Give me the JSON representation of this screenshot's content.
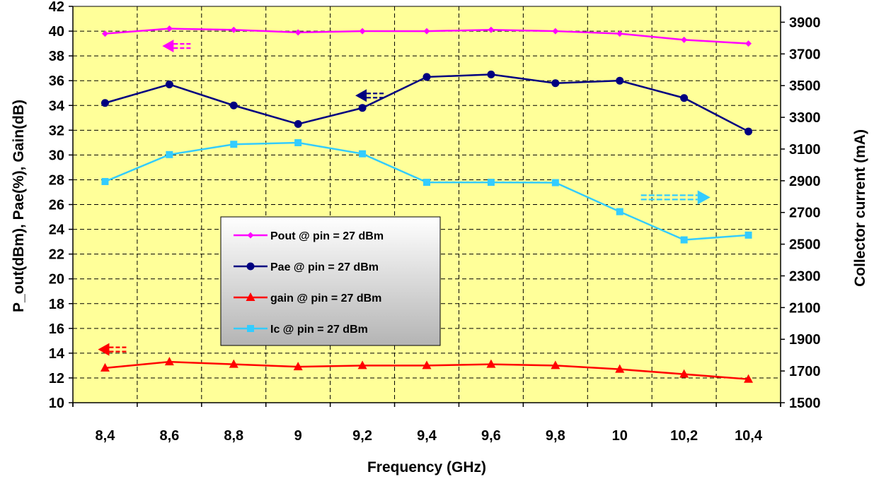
{
  "chart_data": {
    "type": "line",
    "x": [
      "8,4",
      "8,6",
      "8,8",
      "9",
      "9,2",
      "9,4",
      "9,6",
      "9,8",
      "10",
      "10,2",
      "10,4"
    ],
    "xlabel": "Frequency (GHz)",
    "ylabel_left": "P_out(dBm), Pae(%), Gain(dB)",
    "ylabel_right": "Collector current (mA)",
    "ylim_left": [
      10,
      42
    ],
    "yticks_left": [
      10,
      12,
      14,
      16,
      18,
      20,
      22,
      24,
      26,
      28,
      30,
      32,
      34,
      36,
      38,
      40,
      42
    ],
    "ylim_right": [
      1500,
      4000
    ],
    "yticks_right": [
      1500,
      1700,
      1900,
      2100,
      2300,
      2500,
      2700,
      2900,
      3100,
      3300,
      3500,
      3700,
      3900
    ],
    "grid": true,
    "legend_position": "center-left",
    "plot_background": "#FFFF99",
    "series": [
      {
        "name": "Pout @ pin = 27 dBm",
        "axis": "left",
        "marker": "diamond",
        "color": "#FF00FF",
        "values": [
          39.8,
          40.2,
          40.1,
          39.9,
          40.0,
          40.0,
          40.1,
          40.0,
          39.8,
          39.3,
          39.0
        ]
      },
      {
        "name": "Pae @ pin = 27 dBm",
        "axis": "left",
        "marker": "circle",
        "color": "#000080",
        "values": [
          34.2,
          35.7,
          34.0,
          32.5,
          33.8,
          36.3,
          36.5,
          35.8,
          36.0,
          34.6,
          31.9
        ]
      },
      {
        "name": "gain @ pin = 27 dBm",
        "axis": "left",
        "marker": "triangle",
        "color": "#FF0000",
        "values": [
          12.8,
          13.3,
          13.1,
          12.9,
          13.0,
          13.0,
          13.1,
          13.0,
          12.7,
          12.3,
          11.9
        ]
      },
      {
        "name": "Ic @ pin = 27 dBm",
        "axis": "right",
        "marker": "square",
        "color": "#33CCFF",
        "values": [
          2895,
          3065,
          3130,
          3140,
          3070,
          2890,
          2890,
          2888,
          2705,
          2527,
          2557
        ]
      }
    ],
    "annotations": [
      {
        "kind": "axis-arrow",
        "direction": "left",
        "color": "#FF00FF",
        "x": "8,6",
        "y": 38.8,
        "axis": "left"
      },
      {
        "kind": "axis-arrow",
        "direction": "left",
        "color": "#000080",
        "x": "9,2",
        "y": 34.8,
        "axis": "left"
      },
      {
        "kind": "axis-arrow",
        "direction": "left",
        "color": "#FF0000",
        "x": "8,4",
        "y": 14.3,
        "axis": "left"
      },
      {
        "kind": "axis-arrow",
        "direction": "right",
        "color": "#33CCFF",
        "x": "10",
        "y": 2795,
        "axis": "right"
      }
    ]
  }
}
